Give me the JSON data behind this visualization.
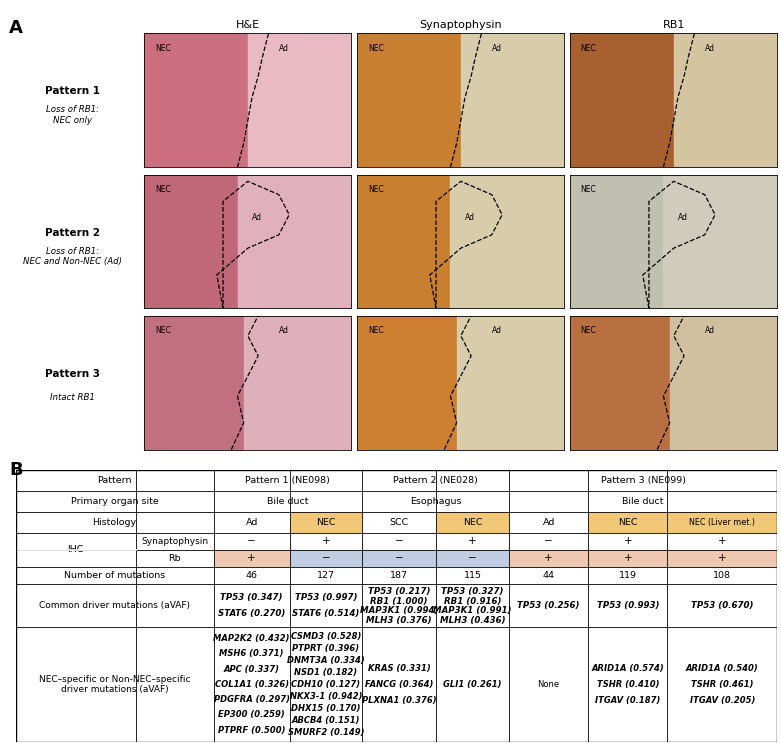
{
  "col_headers": [
    "H&E",
    "Synaptophysin",
    "RB1"
  ],
  "row_labels": [
    {
      "main": "Pattern 1",
      "sub": "Loss of RB1:\nNEC only"
    },
    {
      "main": "Pattern 2",
      "sub": "Loss of RB1:\nNEC and Non-NEC (Ad)"
    },
    {
      "main": "Pattern 3",
      "sub": "Intact RB1"
    }
  ],
  "img_colors": {
    "hne": [
      "#D4748A",
      "#E8C0C8",
      "#C87898",
      "#E0C0CC",
      "#C87888",
      "#DDB8C8"
    ],
    "synap": [
      "#CC8838",
      "#DDD0B0",
      "#CC8838",
      "#DDD0B0",
      "#CC8838",
      "#DDD0B0"
    ],
    "rb1_p1_nec": "#B06030",
    "rb1_p1_ad": "#D8C8A8",
    "rb1_p2_nec": "#C8C8B0",
    "rb1_p2_ad": "#D8D0B8",
    "rb1_p3_nec": "#C07838",
    "rb1_p3_ad": "#D4C0A0"
  },
  "colors": {
    "nec_bg": "#F0C878",
    "rb_neg_bg": "#C0CCDF",
    "rb_pos_bg": "#EEC8B0",
    "white": "#FFFFFF",
    "border": "#444444"
  },
  "common_mutations": [
    [
      "TP53 (0.347)",
      "STAT6 (0.270)"
    ],
    [
      "TP53 (0.997)",
      "STAT6 (0.514)"
    ],
    [
      "TP53 (0.217)",
      "RB1 (1.000)",
      "MAP3K1 (0.994)",
      "MLH3 (0.376)"
    ],
    [
      "TP53 (0.327)",
      "RB1 (0.916)",
      "MAP3K1 (0.991)",
      "MLH3 (0.436)"
    ],
    [
      "TP53 (0.256)"
    ],
    [
      "TP53 (0.993)"
    ],
    [
      "TP53 (0.670)"
    ]
  ],
  "common_bold": [
    [
      "TP53",
      "STAT6"
    ],
    [
      "TP53",
      "STAT6"
    ],
    [
      "TP53",
      "RB1",
      "MAP3K1",
      "MLH3"
    ],
    [
      "TP53",
      "RB1",
      "MAP3K1",
      "MLH3"
    ],
    [
      "TP53"
    ],
    [
      "TP53"
    ],
    [
      "TP53"
    ]
  ],
  "nec_specific": [
    [
      "MAP2K2 (0.432)",
      "MSH6 (0.371)",
      "APC (0.337)",
      "COL1A1 (0.326)",
      "PDGFRA (0.297)",
      "EP300 (0.259)",
      "PTPRF (0.500)"
    ],
    [
      "CSMD3 (0.528)",
      "PTPRT (0.396)",
      "DNMT3A (0.334)",
      "NSD1 (0.182)",
      "CDH10 (0.127)",
      "NKX3-1 (0.942)",
      "DHX15 (0.170)",
      "ABCB4 (0.151)",
      "SMURF2 (0.149)"
    ],
    [
      "KRAS (0.331)",
      "FANCG (0.364)",
      "PLXNA1 (0.376)"
    ],
    [
      "GLI1 (0.261)"
    ],
    [
      "None"
    ],
    [
      "ARID1A (0.574)",
      "TSHR (0.410)",
      "ITGAV (0.187)"
    ],
    [
      "ARID1A (0.540)",
      "TSHR (0.461)",
      "ITGAV (0.205)"
    ]
  ],
  "nec_bold": [
    [
      "MAP2K2",
      "MSH6",
      "APC",
      "COL1A1",
      "PDGFRA",
      "EP300",
      "PTPRF"
    ],
    [
      "CSMD3",
      "PTPRT",
      "DNMT3A",
      "NSD1",
      "CDH10",
      "NKX3-1",
      "DHX15",
      "ABCB4",
      "SMURF2"
    ],
    [
      "KRAS",
      "FANCG",
      "PLXNA1"
    ],
    [
      "GLI1"
    ],
    [],
    [
      "ARID1A",
      "TSHR",
      "ITGAV"
    ],
    [
      "ARID1A",
      "TSHR",
      "ITGAV"
    ]
  ]
}
